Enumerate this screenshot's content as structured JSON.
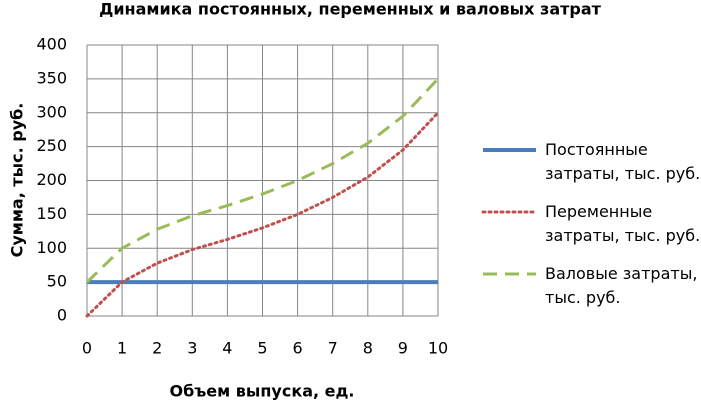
{
  "chart_data": {
    "type": "line",
    "title": "Динамика постоянных, переменных и валовых затрат",
    "x_label": "Объем выпуска, ед.",
    "y_label": "Сумма, тыс. руб.",
    "x": [
      0,
      1,
      2,
      3,
      4,
      5,
      6,
      7,
      8,
      9,
      10
    ],
    "xlim": [
      0,
      10
    ],
    "xticks": [
      0,
      1,
      2,
      3,
      4,
      5,
      6,
      7,
      8,
      9,
      10
    ],
    "ylim": [
      0,
      400
    ],
    "yticks": [
      0,
      50,
      100,
      150,
      200,
      250,
      300,
      350,
      400
    ],
    "grid": true,
    "legend": "right",
    "series": [
      {
        "name": "Постоянные затраты, тыс. руб.",
        "color": "#4a7ebb",
        "style": "solid",
        "values": [
          50,
          50,
          50,
          50,
          50,
          50,
          50,
          50,
          50,
          50,
          50
        ]
      },
      {
        "name": "Переменные затраты, тыс. руб.",
        "color": "#c0504d",
        "style": "dotted",
        "values": [
          0,
          50,
          78,
          98,
          113,
          130,
          150,
          175,
          205,
          245,
          300
        ]
      },
      {
        "name": "Валовые затраты, тыс. руб.",
        "color": "#9bbb59",
        "style": "dashed",
        "values": [
          50,
          100,
          128,
          148,
          163,
          180,
          200,
          225,
          255,
          295,
          350
        ]
      }
    ]
  }
}
